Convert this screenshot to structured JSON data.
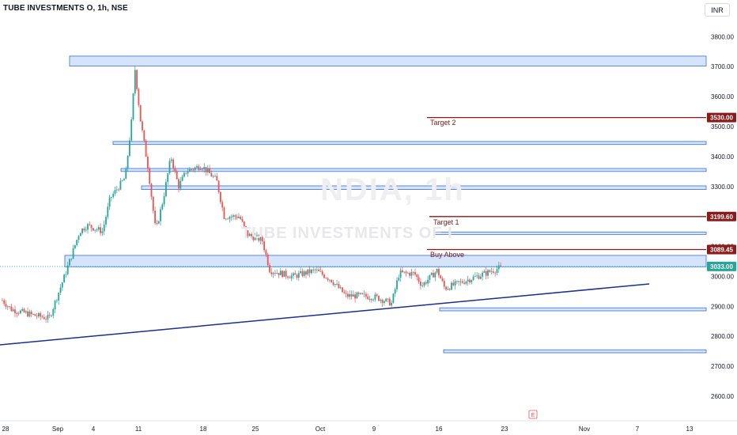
{
  "header": {
    "title": "TUBE INVESTMENTS O, 1h, NSE",
    "currency": "INR"
  },
  "watermark": {
    "big": "NDIA, 1h",
    "small": "TUBE INVESTMENTS OF I"
  },
  "annotations": {
    "target2": "Target 2",
    "target1": "Target 1",
    "buy_above": "Buy Above"
  },
  "colors": {
    "up": "#26a69a",
    "down": "#ef5350",
    "zone_fill": "#d6e4fb",
    "zone_stroke": "#3a6fd0",
    "target": "#8b1a1a",
    "trend": "#1a2f8f",
    "current": "#26a69a"
  },
  "chart_data": {
    "type": "candlestick",
    "title": "TUBE INVESTMENTS O, 1h, NSE",
    "currency": "INR",
    "ylim": [
      2540,
      3860
    ],
    "y_ticks": [
      2600,
      2700,
      2800,
      2900,
      3000,
      3100,
      3200,
      3300,
      3400,
      3500,
      3600,
      3700,
      3800
    ],
    "y_tick_labels": [
      "2600.00",
      "2700.00",
      "2800.00",
      "2900.00",
      "3000.00",
      "3100.00",
      "3200.00",
      "3300.00",
      "3400.00",
      "3500.00",
      "3600.00",
      "3700.00",
      "3800.00"
    ],
    "x_ticks": [
      "28",
      "Sep",
      "4",
      "11",
      "18",
      "25",
      "Oct",
      "9",
      "16",
      "23",
      "Nov",
      "7",
      "13"
    ],
    "price_labels": [
      {
        "value": 3530.0,
        "text": "3530.00",
        "kind": "target"
      },
      {
        "value": 3199.6,
        "text": "3199.60",
        "kind": "target"
      },
      {
        "value": 3089.45,
        "text": "3089.45",
        "kind": "target"
      },
      {
        "value": 3033.0,
        "text": "3033.00",
        "kind": "current"
      }
    ],
    "horizontal_lines": [
      {
        "name": "Target 2",
        "value": 3530
      },
      {
        "name": "Target 1",
        "value": 3199.6
      },
      {
        "name": "Buy Above",
        "value": 3089.45
      }
    ],
    "zones": [
      {
        "low": 3702,
        "high": 3735
      },
      {
        "low": 3440,
        "high": 3450
      },
      {
        "low": 3350,
        "high": 3360
      },
      {
        "low": 3290,
        "high": 3302
      },
      {
        "low": 3140,
        "high": 3148
      },
      {
        "low": 3032,
        "high": 3070
      },
      {
        "low": 2885,
        "high": 2895
      },
      {
        "low": 2745,
        "high": 2755
      }
    ],
    "trendline": [
      {
        "x": "Aug 24",
        "y": 2775
      },
      {
        "x": "Nov 9",
        "y": 2970
      }
    ],
    "close_path": [
      {
        "x": "Aug 24",
        "y": 2920
      },
      {
        "x": "Aug 26",
        "y": 2890
      },
      {
        "x": "Aug 29",
        "y": 2870
      },
      {
        "x": "Aug 31",
        "y": 2860
      },
      {
        "x": "Sep 1",
        "y": 2930
      },
      {
        "x": "Sep 2",
        "y": 3000
      },
      {
        "x": "Sep 4",
        "y": 3150
      },
      {
        "x": "Sep 5",
        "y": 3170
      },
      {
        "x": "Sep 7",
        "y": 3150
      },
      {
        "x": "Sep 8",
        "y": 3260
      },
      {
        "x": "Sep 10",
        "y": 3330
      },
      {
        "x": "Sep 11",
        "y": 3560
      },
      {
        "x": "Sep 11",
        "y": 3720
      },
      {
        "x": "Sep 12",
        "y": 3520
      },
      {
        "x": "Sep 13",
        "y": 3360
      },
      {
        "x": "Sep 14",
        "y": 3150
      },
      {
        "x": "Sep 15",
        "y": 3260
      },
      {
        "x": "Sep 16",
        "y": 3400
      },
      {
        "x": "Sep 17",
        "y": 3300
      },
      {
        "x": "Sep 18",
        "y": 3350
      },
      {
        "x": "Sep 20",
        "y": 3370
      },
      {
        "x": "Sep 22",
        "y": 3320
      },
      {
        "x": "Sep 23",
        "y": 3200
      },
      {
        "x": "Sep 25",
        "y": 3200
      },
      {
        "x": "Sep 26",
        "y": 3140
      },
      {
        "x": "Sep 28",
        "y": 3120
      },
      {
        "x": "Sep 29",
        "y": 3020
      },
      {
        "x": "Oct 2",
        "y": 3000
      },
      {
        "x": "Oct 5",
        "y": 3020
      },
      {
        "x": "Oct 7",
        "y": 2990
      },
      {
        "x": "Oct 9",
        "y": 2935
      },
      {
        "x": "Oct 11",
        "y": 2935
      },
      {
        "x": "Oct 13",
        "y": 2930
      },
      {
        "x": "Oct 15",
        "y": 2910
      },
      {
        "x": "Oct 16",
        "y": 3010
      },
      {
        "x": "Oct 18",
        "y": 3010
      },
      {
        "x": "Oct 19",
        "y": 2970
      },
      {
        "x": "Oct 21",
        "y": 3020
      },
      {
        "x": "Oct 22",
        "y": 2960
      },
      {
        "x": "Oct 23",
        "y": 3033
      }
    ]
  }
}
